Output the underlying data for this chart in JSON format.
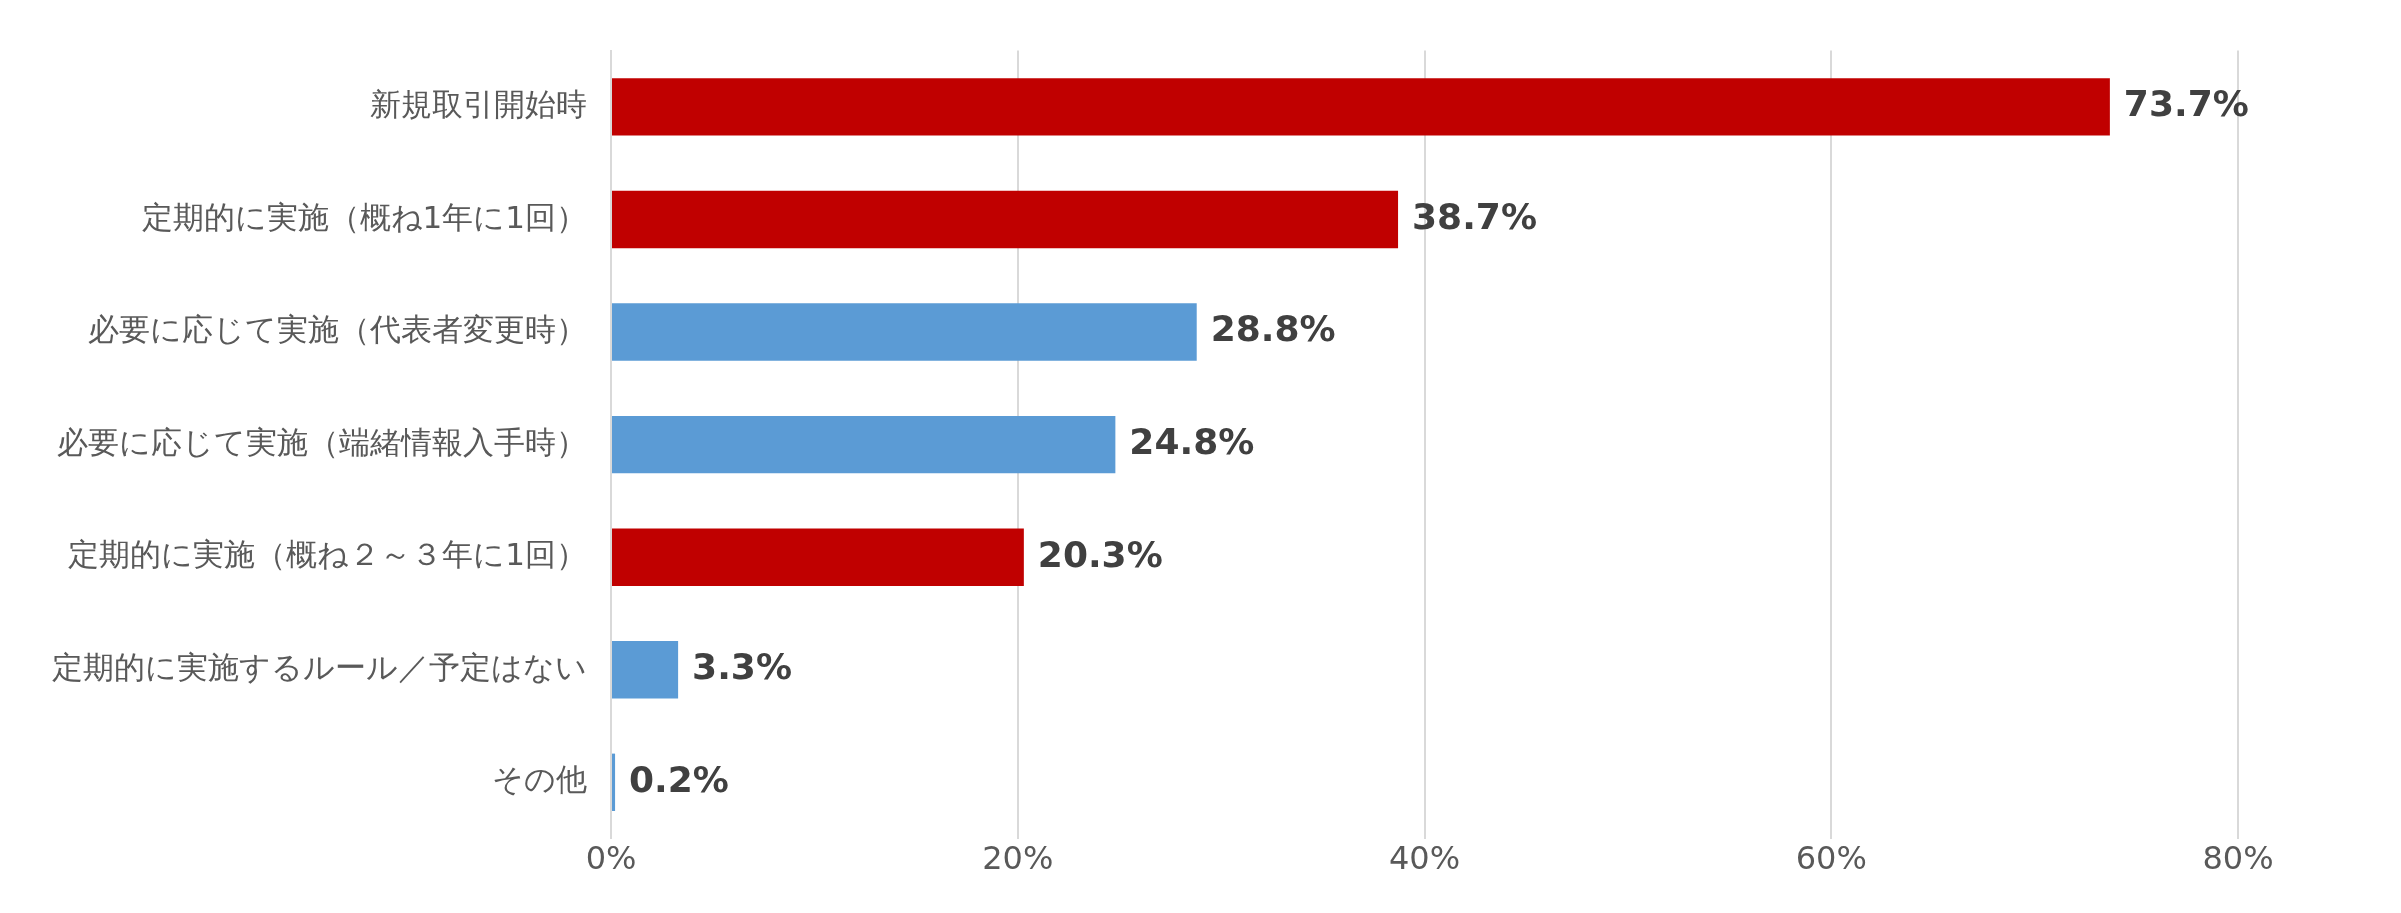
{
  "chart_data": {
    "type": "bar",
    "orientation": "horizontal",
    "categories": [
      "新規取引開始時",
      "定期的に実施（概ね1年に1回）",
      "必要に応じて実施（代表者変更時）",
      "必要に応じて実施（端緒情報入手時）",
      "定期的に実施（概ね２～３年に1回）",
      "定期的に実施するルール／予定はない",
      "その他"
    ],
    "values": [
      73.7,
      38.7,
      28.8,
      24.8,
      20.3,
      3.3,
      0.2
    ],
    "colors": [
      "#c00000",
      "#c00000",
      "#5b9bd5",
      "#5b9bd5",
      "#c00000",
      "#5b9bd5",
      "#5b9bd5"
    ],
    "value_labels": [
      "73.7%",
      "38.7%",
      "28.8%",
      "24.8%",
      "20.3%",
      "3.3%",
      "0.2%"
    ],
    "xlim": [
      0,
      80
    ],
    "xticks": [
      {
        "value": 0,
        "label": "0%"
      },
      {
        "value": 20,
        "label": "20%"
      },
      {
        "value": 40,
        "label": "40%"
      },
      {
        "value": 60,
        "label": "60%"
      },
      {
        "value": 80,
        "label": "80%"
      }
    ],
    "grid": "x",
    "legend": false
  }
}
